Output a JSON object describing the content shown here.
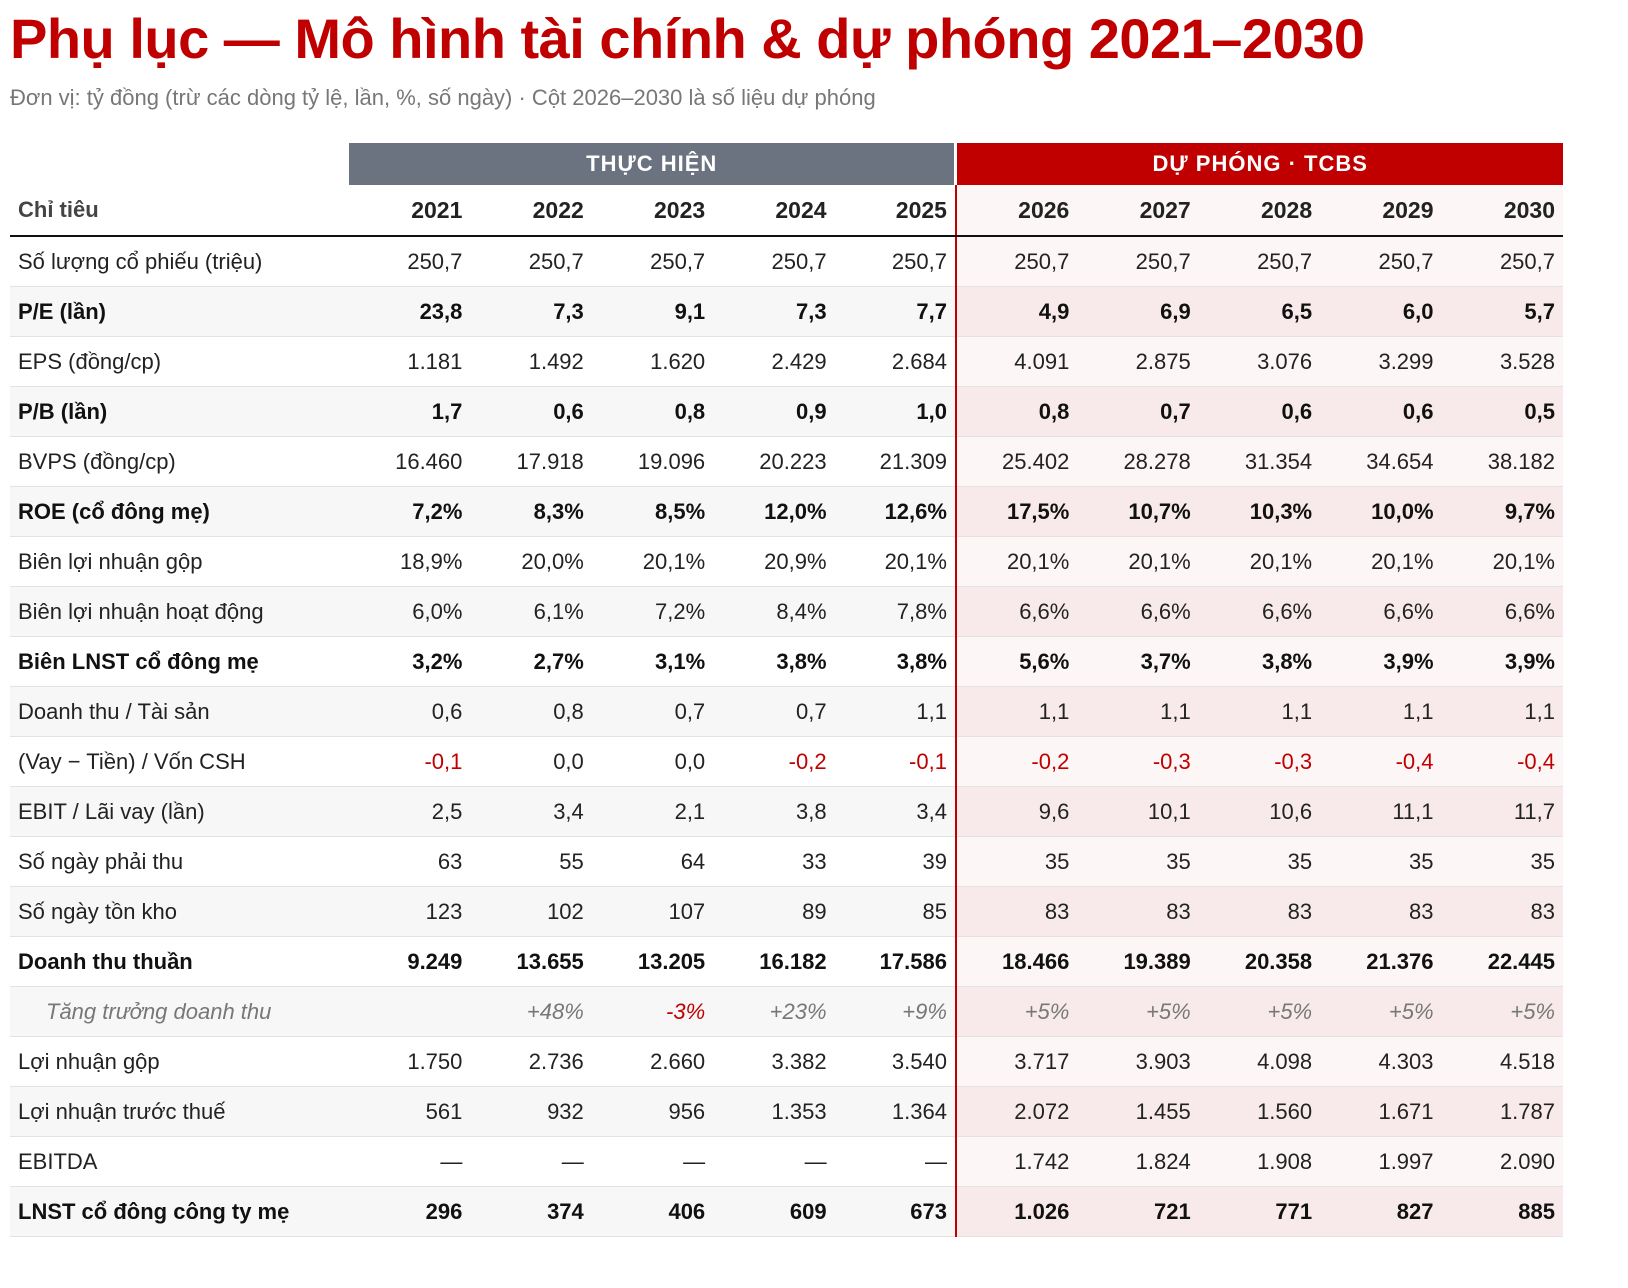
{
  "header": {
    "title": "Phụ lục — Mô hình tài chính & dự phóng 2021–2030",
    "subtitle": "Đơn vị: tỷ đồng (trừ các dòng tỷ lệ, lần, %, số ngày) · Cột 2026–2030 là số liệu dự phóng"
  },
  "table": {
    "groups": [
      "THỰC HIỆN",
      "DỰ PHÓNG · TCBS"
    ],
    "columns": [
      "Chỉ tiêu",
      "2021",
      "2022",
      "2023",
      "2024",
      "2025",
      "2026",
      "2027",
      "2028",
      "2029",
      "2030"
    ],
    "rows": [
      {
        "label": "Số lượng cổ phiếu (triệu)",
        "values": [
          "250,7",
          "250,7",
          "250,7",
          "250,7",
          "250,7",
          "250,7",
          "250,7",
          "250,7",
          "250,7",
          "250,7"
        ]
      },
      {
        "label": "P/E (lần)",
        "style": "bold",
        "values": [
          "23,8",
          "7,3",
          "9,1",
          "7,3",
          "7,7",
          "4,9",
          "6,9",
          "6,5",
          "6,0",
          "5,7"
        ]
      },
      {
        "label": "EPS (đồng/cp)",
        "values": [
          "1.181",
          "1.492",
          "1.620",
          "2.429",
          "2.684",
          "4.091",
          "2.875",
          "3.076",
          "3.299",
          "3.528"
        ]
      },
      {
        "label": "P/B (lần)",
        "style": "bold",
        "values": [
          "1,7",
          "0,6",
          "0,8",
          "0,9",
          "1,0",
          "0,8",
          "0,7",
          "0,6",
          "0,6",
          "0,5"
        ]
      },
      {
        "label": "BVPS (đồng/cp)",
        "values": [
          "16.460",
          "17.918",
          "19.096",
          "20.223",
          "21.309",
          "25.402",
          "28.278",
          "31.354",
          "34.654",
          "38.182"
        ]
      },
      {
        "label": "ROE (cổ đông mẹ)",
        "style": "bold",
        "values": [
          "7,2%",
          "8,3%",
          "8,5%",
          "12,0%",
          "12,6%",
          "17,5%",
          "10,7%",
          "10,3%",
          "10,0%",
          "9,7%"
        ]
      },
      {
        "label": "Biên lợi nhuận gộp",
        "values": [
          "18,9%",
          "20,0%",
          "20,1%",
          "20,9%",
          "20,1%",
          "20,1%",
          "20,1%",
          "20,1%",
          "20,1%",
          "20,1%"
        ]
      },
      {
        "label": "Biên lợi nhuận hoạt động",
        "values": [
          "6,0%",
          "6,1%",
          "7,2%",
          "8,4%",
          "7,8%",
          "6,6%",
          "6,6%",
          "6,6%",
          "6,6%",
          "6,6%"
        ]
      },
      {
        "label": "Biên LNST cổ đông mẹ",
        "style": "bold",
        "values": [
          "3,2%",
          "2,7%",
          "3,1%",
          "3,8%",
          "3,8%",
          "5,6%",
          "3,7%",
          "3,8%",
          "3,9%",
          "3,9%"
        ]
      },
      {
        "label": "Doanh thu / Tài sản",
        "values": [
          "0,6",
          "0,8",
          "0,7",
          "0,7",
          "1,1",
          "1,1",
          "1,1",
          "1,1",
          "1,1",
          "1,1"
        ]
      },
      {
        "label": "(Vay − Tiền) / Vốn CSH",
        "values": [
          "-0,1",
          "0,0",
          "0,0",
          "-0,2",
          "-0,1",
          "-0,2",
          "-0,3",
          "-0,3",
          "-0,4",
          "-0,4"
        ]
      },
      {
        "label": "EBIT / Lãi vay (lần)",
        "values": [
          "2,5",
          "3,4",
          "2,1",
          "3,8",
          "3,4",
          "9,6",
          "10,1",
          "10,6",
          "11,1",
          "11,7"
        ]
      },
      {
        "label": "Số ngày phải thu",
        "values": [
          "63",
          "55",
          "64",
          "33",
          "39",
          "35",
          "35",
          "35",
          "35",
          "35"
        ]
      },
      {
        "label": "Số ngày tồn kho",
        "values": [
          "123",
          "102",
          "107",
          "89",
          "85",
          "83",
          "83",
          "83",
          "83",
          "83"
        ]
      },
      {
        "label": "Doanh thu thuần",
        "style": "bold",
        "values": [
          "9.249",
          "13.655",
          "13.205",
          "16.182",
          "17.586",
          "18.466",
          "19.389",
          "20.358",
          "21.376",
          "22.445"
        ]
      },
      {
        "label": "Tăng trưởng doanh thu",
        "style": "italic",
        "values": [
          null,
          "+48%",
          "-3%",
          "+23%",
          "+9%",
          "+5%",
          "+5%",
          "+5%",
          "+5%",
          "+5%"
        ]
      },
      {
        "label": "Lợi nhuận gộp",
        "values": [
          "1.750",
          "2.736",
          "2.660",
          "3.382",
          "3.540",
          "3.717",
          "3.903",
          "4.098",
          "4.303",
          "4.518"
        ]
      },
      {
        "label": "Lợi nhuận trước thuế",
        "values": [
          "561",
          "932",
          "956",
          "1.353",
          "1.364",
          "2.072",
          "1.455",
          "1.560",
          "1.671",
          "1.787"
        ]
      },
      {
        "label": "EBITDA",
        "values": [
          "—",
          "—",
          "—",
          "—",
          "—",
          "1.742",
          "1.824",
          "1.908",
          "1.997",
          "2.090"
        ]
      },
      {
        "label": "LNST cổ đông công ty mẹ",
        "style": "bold",
        "values": [
          "296",
          "374",
          "406",
          "609",
          "673",
          "1.026",
          "721",
          "771",
          "827",
          "885"
        ]
      }
    ]
  }
}
